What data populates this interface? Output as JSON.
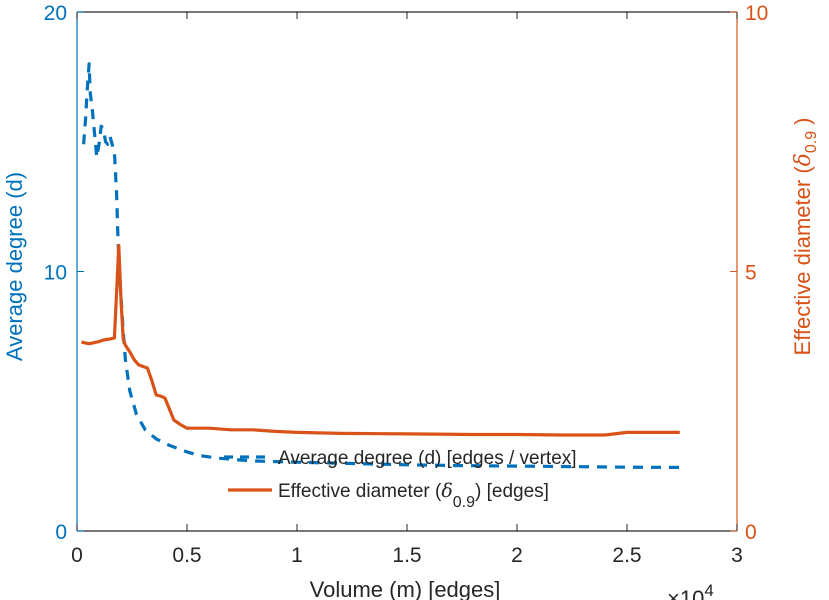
{
  "chart_data": {
    "type": "line",
    "title": "",
    "xlabel": "Volume (m) [edges]",
    "x_exponent": "×10",
    "x_exponent_power": "4",
    "xlim": [
      0,
      3
    ],
    "xticks": [
      "0",
      "0.5",
      "1",
      "1.5",
      "2",
      "2.5",
      "3"
    ],
    "xtick_values": [
      0,
      0.5,
      1,
      1.5,
      2,
      2.5,
      3
    ],
    "left_axis": {
      "label": "Average degree (d)",
      "ylim": [
        0,
        20
      ],
      "ticks": [
        "0",
        "10",
        "20"
      ],
      "tick_values": [
        0,
        10,
        20
      ],
      "color": "#0072BD"
    },
    "right_axis": {
      "label_prefix": "Effective diameter (",
      "label_symbol": "δ",
      "label_subscript": "0.9",
      "label_suffix": ")",
      "ylim": [
        0,
        10
      ],
      "ticks": [
        "0",
        "5",
        "10"
      ],
      "tick_values": [
        0,
        5,
        10
      ],
      "color": "#D95319"
    },
    "grid": false,
    "legend_position": "bottom-center",
    "series": [
      {
        "name": "Average degree (d) [edges / vertex]",
        "axis": "left",
        "style": "dashed",
        "color": "#0072BD",
        "x": [
          0.03,
          0.04,
          0.045,
          0.05,
          0.055,
          0.06,
          0.07,
          0.08,
          0.09,
          0.1,
          0.11,
          0.12,
          0.13,
          0.14,
          0.15,
          0.17,
          0.18,
          0.185,
          0.19,
          0.2,
          0.21,
          0.22,
          0.24,
          0.27,
          0.31,
          0.36,
          0.42,
          0.5,
          0.56,
          0.65,
          0.79,
          1.0,
          1.25,
          1.5,
          1.75,
          2.0,
          2.25,
          2.5,
          2.74
        ],
        "values": [
          14.9,
          16.0,
          16.8,
          17.4,
          18.0,
          16.9,
          16.2,
          15.3,
          14.4,
          14.9,
          15.6,
          15.5,
          15.0,
          14.9,
          15.2,
          14.6,
          13.0,
          11.6,
          10.4,
          9.0,
          7.7,
          6.6,
          5.4,
          4.5,
          3.9,
          3.55,
          3.3,
          3.05,
          2.9,
          2.8,
          2.7,
          2.65,
          2.6,
          2.55,
          2.52,
          2.5,
          2.48,
          2.46,
          2.45
        ]
      },
      {
        "name_prefix": "Effective diameter (",
        "name_symbol": "δ",
        "name_subscript": "0.9",
        "name_suffix": ") [edges]",
        "axis": "right",
        "style": "solid",
        "color": "#D95319",
        "x": [
          0.02,
          0.04,
          0.06,
          0.08,
          0.1,
          0.12,
          0.15,
          0.17,
          0.18,
          0.19,
          0.2,
          0.21,
          0.22,
          0.24,
          0.26,
          0.28,
          0.3,
          0.32,
          0.34,
          0.36,
          0.38,
          0.4,
          0.42,
          0.44,
          0.47,
          0.5,
          0.55,
          0.6,
          0.7,
          0.8,
          0.9,
          1.0,
          1.2,
          1.5,
          1.8,
          2.0,
          2.2,
          2.4,
          2.5,
          2.6,
          2.74
        ],
        "values": [
          3.64,
          3.62,
          3.61,
          3.63,
          3.65,
          3.68,
          3.7,
          3.72,
          4.6,
          5.5,
          4.45,
          3.7,
          3.58,
          3.45,
          3.3,
          3.2,
          3.17,
          3.14,
          2.9,
          2.62,
          2.6,
          2.56,
          2.35,
          2.14,
          2.05,
          1.98,
          1.98,
          1.98,
          1.95,
          1.95,
          1.92,
          1.9,
          1.88,
          1.87,
          1.86,
          1.86,
          1.85,
          1.85,
          1.9,
          1.9,
          1.9
        ]
      }
    ]
  }
}
